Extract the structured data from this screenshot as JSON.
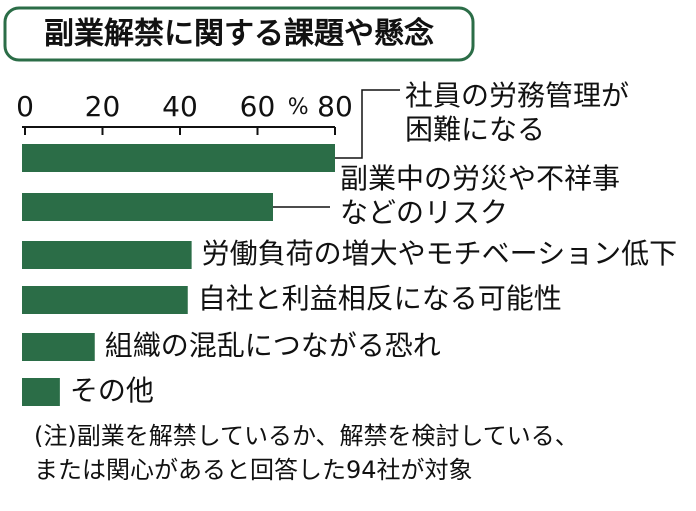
{
  "chart_data": {
    "type": "bar",
    "orientation": "horizontal",
    "title": "副業解禁に関する課題や懸念",
    "x_unit": "%",
    "categories": [
      "社員の労務管理が\n困難になる",
      "副業中の労災や不祥事\nなどのリスク",
      "労働負荷の増大やモチベーション低下",
      "自社と利益相反になる可能性",
      "組織の混乱につながる恐れ",
      "その他"
    ],
    "values": [
      80,
      64,
      43,
      42,
      18,
      9
    ],
    "color": "#2b6d47",
    "xlim": [
      0,
      80
    ],
    "xticks": [
      0,
      20,
      40,
      60,
      80
    ],
    "note": "(注)副業を解禁しているか、解禁を検討している、\nまたは関心があると回答した94社が対象"
  }
}
